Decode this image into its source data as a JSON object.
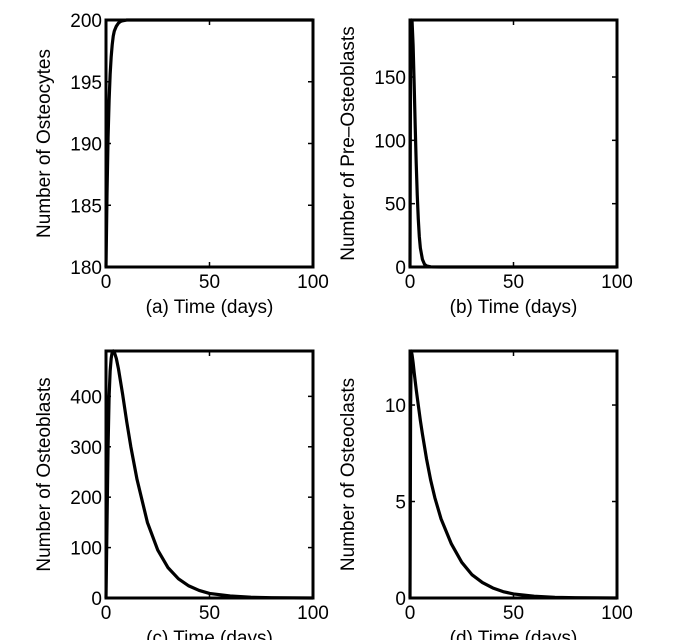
{
  "chart_data": [
    {
      "panel": "a",
      "type": "line",
      "xlabel": "(a)  Time (days)",
      "ylabel": "Number of Osteocytes",
      "xlim": [
        0,
        100
      ],
      "ylim": [
        180,
        200
      ],
      "xticks": [
        0,
        50,
        100
      ],
      "yticks": [
        180,
        185,
        190,
        195,
        200
      ],
      "series": [
        {
          "name": "Osteocytes",
          "x": [
            0,
            0.5,
            1,
            1.5,
            2,
            2.5,
            3,
            3.5,
            4,
            5,
            6,
            7,
            8,
            10,
            15,
            20,
            30,
            50,
            100
          ],
          "y": [
            180,
            186,
            190.5,
            193.5,
            195.6,
            197,
            198,
            198.7,
            199.1,
            199.5,
            199.75,
            199.88,
            199.94,
            200,
            200,
            200,
            200,
            200,
            200
          ]
        }
      ]
    },
    {
      "panel": "b",
      "type": "line",
      "xlabel": "(b)  Time (days)",
      "ylabel": "Number of Pre–Osteoblasts",
      "xlim": [
        0,
        100
      ],
      "ylim": [
        0,
        195
      ],
      "xticks": [
        0,
        50,
        100
      ],
      "yticks": [
        0,
        50,
        100,
        150
      ],
      "series": [
        {
          "name": "Pre-Osteoblasts",
          "x": [
            0,
            0.3,
            0.6,
            1,
            1.5,
            2,
            2.5,
            3,
            3.5,
            4,
            4.5,
            5,
            6,
            7,
            8,
            10,
            15,
            20,
            50,
            100
          ],
          "y": [
            0,
            192,
            195,
            194,
            175,
            145,
            112,
            82,
            57,
            38,
            24,
            15,
            6,
            2.2,
            0.8,
            0.1,
            0,
            0,
            0,
            0
          ]
        }
      ]
    },
    {
      "panel": "c",
      "type": "line",
      "xlabel": "(c)  Time (days)",
      "ylabel": "Number of Osteoblasts",
      "xlim": [
        0,
        100
      ],
      "ylim": [
        0,
        490
      ],
      "xticks": [
        0,
        50,
        100
      ],
      "yticks": [
        0,
        100,
        200,
        300,
        400
      ],
      "series": [
        {
          "name": "Osteoblasts",
          "x": [
            0,
            0.5,
            1,
            1.5,
            2,
            2.5,
            3,
            3.5,
            4,
            5,
            6,
            8,
            10,
            12,
            15,
            20,
            25,
            30,
            35,
            40,
            45,
            50,
            60,
            70,
            80,
            100
          ],
          "y": [
            0,
            150,
            300,
            400,
            450,
            475,
            488,
            490,
            488,
            475,
            455,
            405,
            350,
            300,
            235,
            150,
            95,
            60,
            38,
            24,
            15,
            9,
            4,
            1.5,
            0.5,
            0
          ]
        }
      ]
    },
    {
      "panel": "d",
      "type": "line",
      "xlabel": "(d)  Time (days)",
      "ylabel": "Number of Osteoclasts",
      "xlim": [
        0,
        100
      ],
      "ylim": [
        0,
        12.8
      ],
      "xticks": [
        0,
        50,
        100
      ],
      "yticks": [
        0,
        5,
        10
      ],
      "series": [
        {
          "name": "Osteoclasts",
          "x": [
            0,
            0.3,
            0.6,
            1,
            1.5,
            2,
            3,
            4,
            5,
            6,
            8,
            10,
            12,
            15,
            20,
            25,
            30,
            35,
            40,
            45,
            50,
            60,
            70,
            80,
            100
          ],
          "y": [
            0,
            10,
            12.8,
            12.6,
            12.2,
            11.7,
            10.8,
            10,
            9.2,
            8.5,
            7.2,
            6.1,
            5.2,
            4.1,
            2.8,
            1.85,
            1.2,
            0.8,
            0.52,
            0.33,
            0.21,
            0.09,
            0.035,
            0.012,
            0
          ]
        }
      ]
    }
  ]
}
